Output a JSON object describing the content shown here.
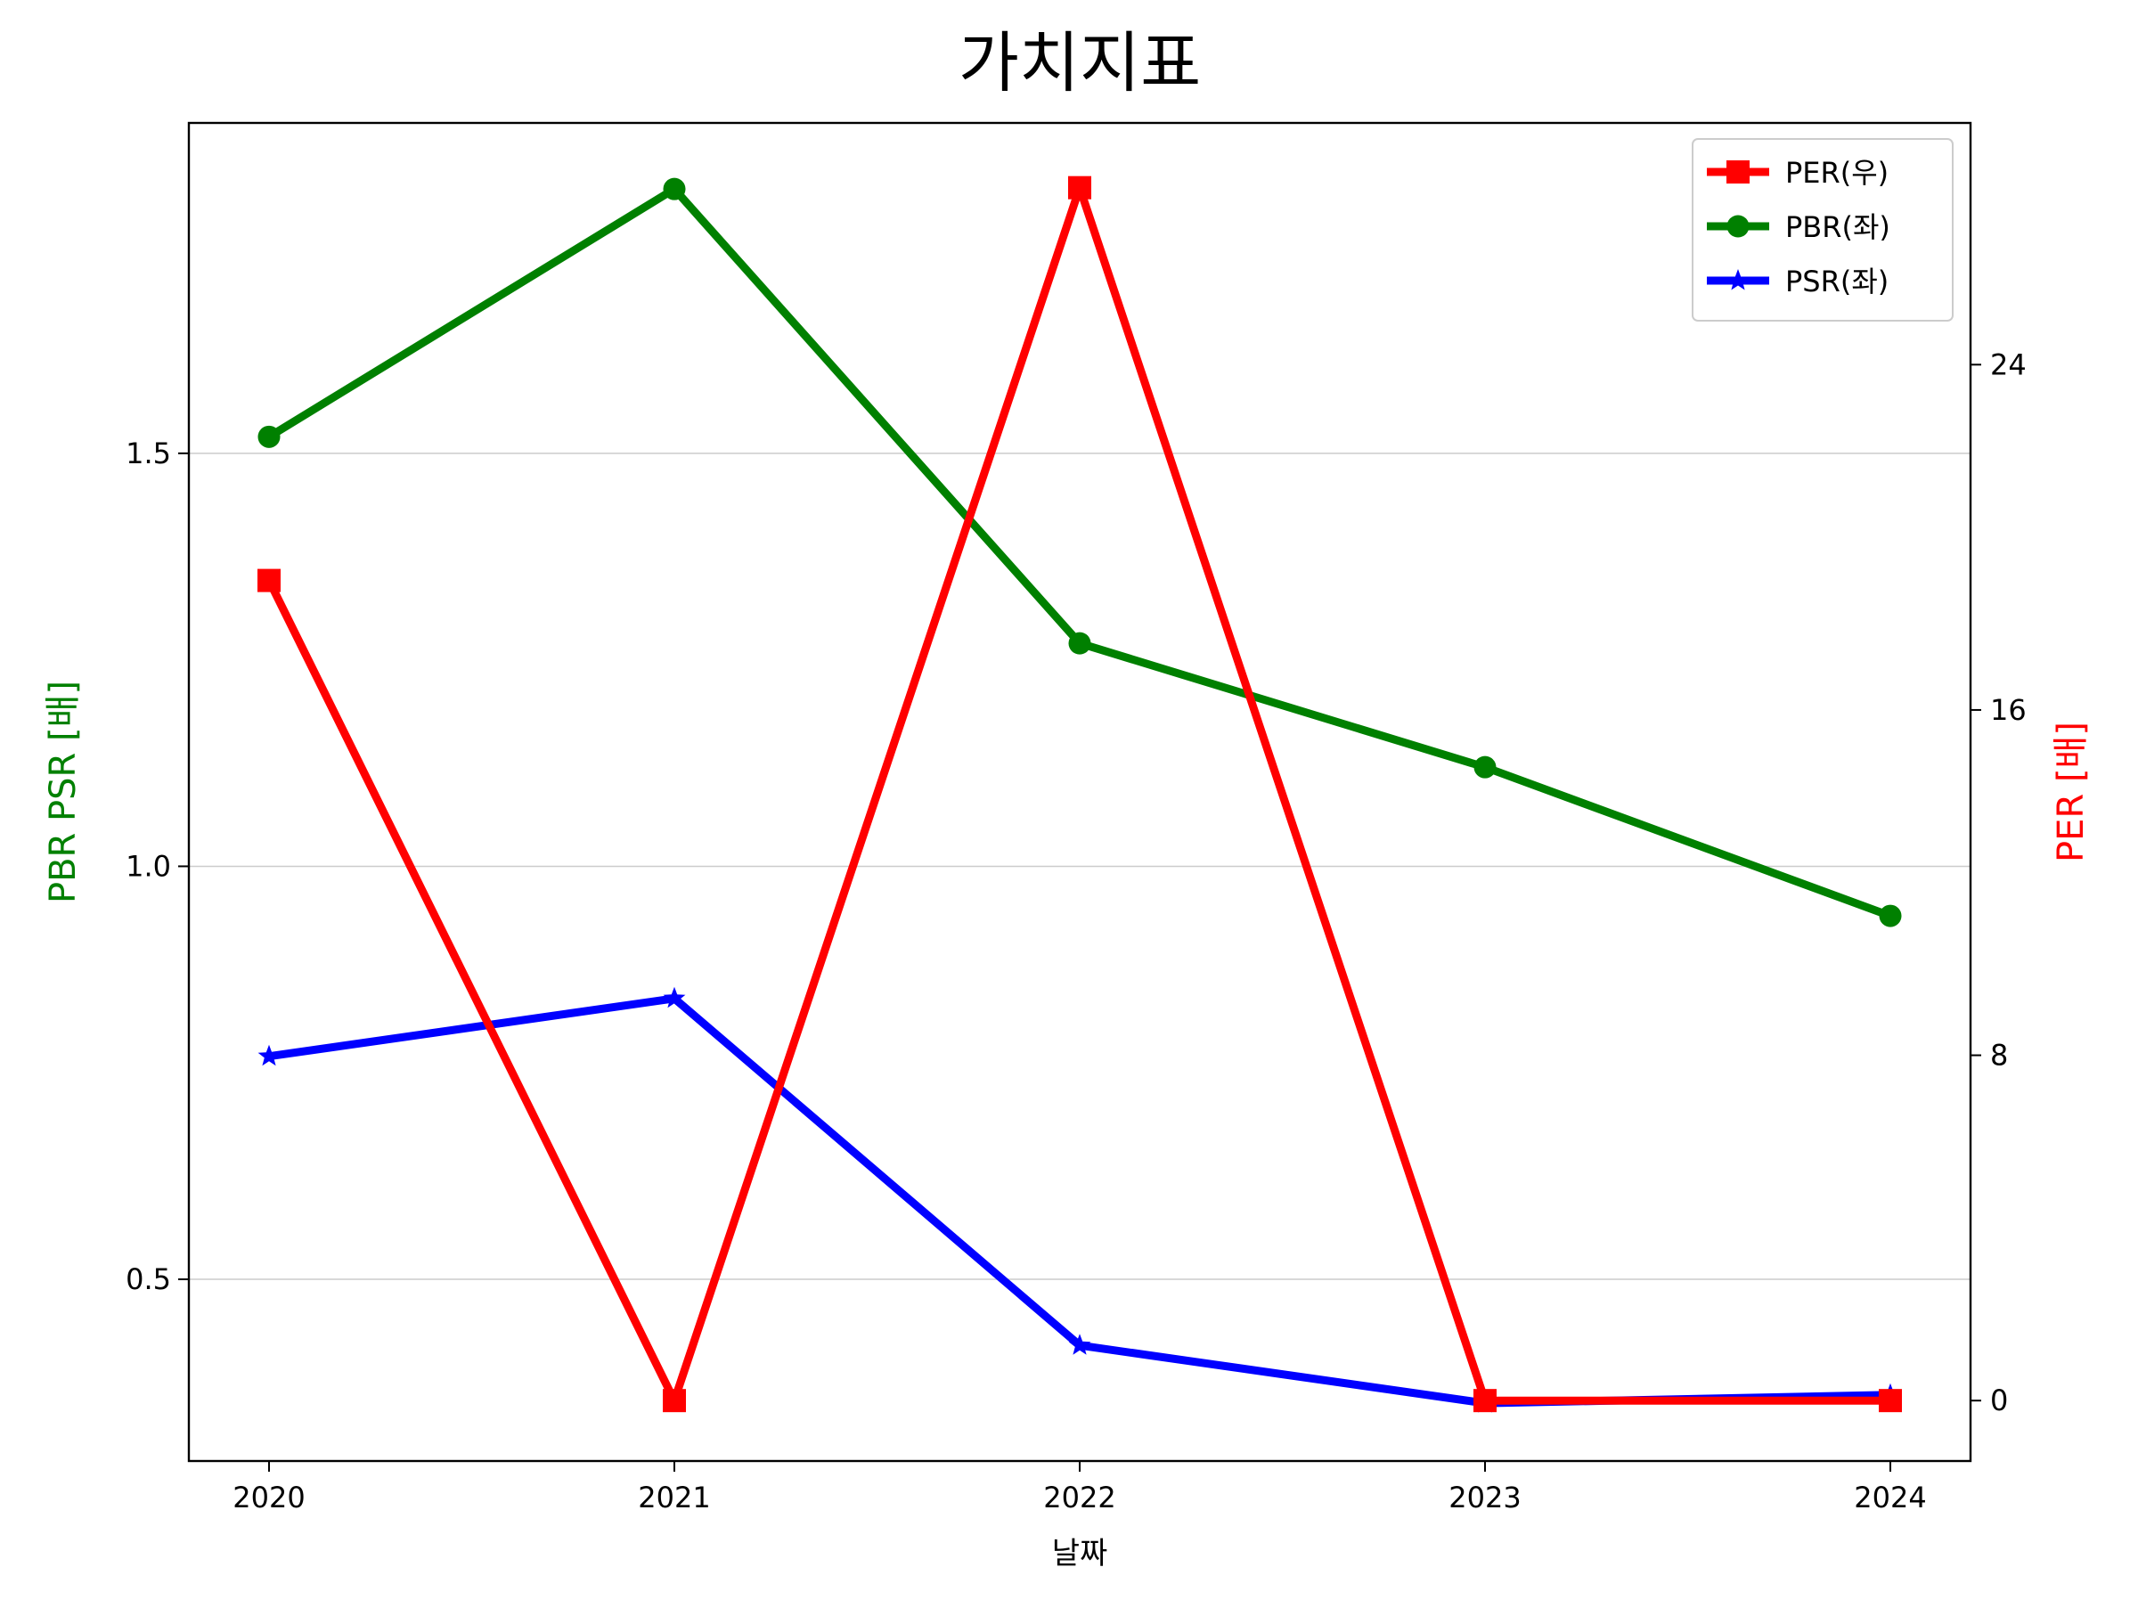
{
  "chart_data": {
    "type": "line",
    "title": "가치지표",
    "xlabel": "날짜",
    "ylabel_left": "PBR PSR [배]",
    "ylabel_right": "PER [배]",
    "categories": [
      "2020",
      "2021",
      "2022",
      "2023",
      "2024"
    ],
    "left_axis": {
      "ylim": [
        0.28,
        1.9
      ],
      "ticks": [
        0.5,
        1.0,
        1.5
      ],
      "tick_labels": [
        "0.5",
        "1.0",
        "1.5"
      ],
      "grid": true
    },
    "right_axis": {
      "ylim": [
        -1.4,
        29.6
      ],
      "ticks": [
        0,
        8,
        16,
        24
      ],
      "tick_labels": [
        "0",
        "8",
        "16",
        "24"
      ]
    },
    "series": [
      {
        "name": "PER(우)",
        "axis": "right",
        "color": "#ff0000",
        "marker": "square",
        "values": [
          19.0,
          0.0,
          28.1,
          0.0,
          0.0
        ]
      },
      {
        "name": "PBR(좌)",
        "axis": "left",
        "color": "#008000",
        "marker": "circle",
        "values": [
          1.52,
          1.82,
          1.27,
          1.12,
          0.94
        ]
      },
      {
        "name": "PSR(좌)",
        "axis": "left",
        "color": "#0000ff",
        "marker": "star",
        "values": [
          0.77,
          0.84,
          0.42,
          0.35,
          0.36
        ]
      }
    ],
    "legend_position": "top-right"
  }
}
